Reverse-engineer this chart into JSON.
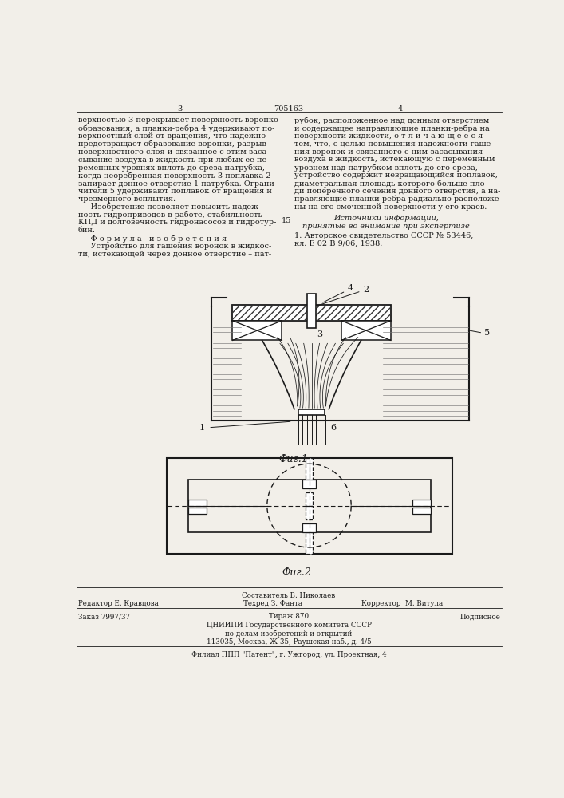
{
  "page_color": "#f2efe9",
  "title_number": "705163",
  "page_left": "3",
  "page_right": "4",
  "col_left_text": [
    "верхностью 3 перекрывает поверхность воронко-",
    "образования, а планки-ребра 4 удерживают по-",
    "верхностный слой от вращения, что надежно",
    "предотвращает образование воронки, разрыв",
    "поверхностного слоя и связанное с этим заса-",
    "сывание воздуха в жидкость при любых ее пе-",
    "ременных уровнях вплоть до среза патрубка,",
    "когда неоребренная поверхность 3 поплавка 2",
    "запирает донное отверстие 1 патрубка. Ограни-",
    "чители 5 удерживают поплавок от вращения и",
    "чрезмерного всплытия.",
    "     Изобретение позволяет повысить надеж-",
    "ность гидроприводов в работе, стабильность",
    "КПД и долговечность гидронасосов и гидротур-",
    "бин.",
    "     Ф о р м у л а   и з о б р е т е н и я",
    "     Устройство для гашения воронок в жидкос-",
    "ти, истекающей через донное отверстие – пат-"
  ],
  "col_right_text": [
    "рубок, расположенное над донным отверстием",
    "и содержащее направляющие планки-ребра на",
    "поверхности жидкости, о т л и ч а ю щ е е с я",
    "тем, что, с целью повышения надежности гаше-",
    "ния воронок и связанного с ним засасывания",
    "воздуха в жидкость, истекающую с переменным",
    "уровнем над патрубком вплоть до его среза,",
    "устройство содержит невращающийся поплавок,",
    "диаметральная площадь которого больше пло-",
    "ди поперечного сечения донного отверстия, а на-",
    "правляющие планки-ребра радиально расположе-",
    "ны на его смоченной поверхности у его краев."
  ],
  "sources_header": "Источники информации,",
  "sources_subheader": "принятые во внимание при экспертизе",
  "source_line_number": "15",
  "source_1": "1. Авторское свидетельство СССР № 53446,",
  "source_1b": "кл. Е 02 В 9/06, 1938.",
  "fig1_caption": "Фиг.1",
  "fig2_caption": "Фиг.2",
  "composer": "Составитель В. Николаев",
  "editor": "Редактор Е. Кравцова",
  "tech_editor": "Техред З. Фанта",
  "corrector": "Корректор  М. Витула",
  "order": "Заказ 7997/37",
  "circulation": "Тираж 870",
  "subscription": "Подписное",
  "org_line1": "ЦНИИПИ Государственного комитета СССР",
  "org_line2": "по делам изобретений и открытий",
  "org_line3": "113035, Москва, Ж-35, Раушская наб., д. 4/5",
  "branch": "Филиал ППП \"Патент\", г. Ужгород, ул. Проектная, 4",
  "line_color": "#1a1a1a",
  "hatch_color": "#333333"
}
